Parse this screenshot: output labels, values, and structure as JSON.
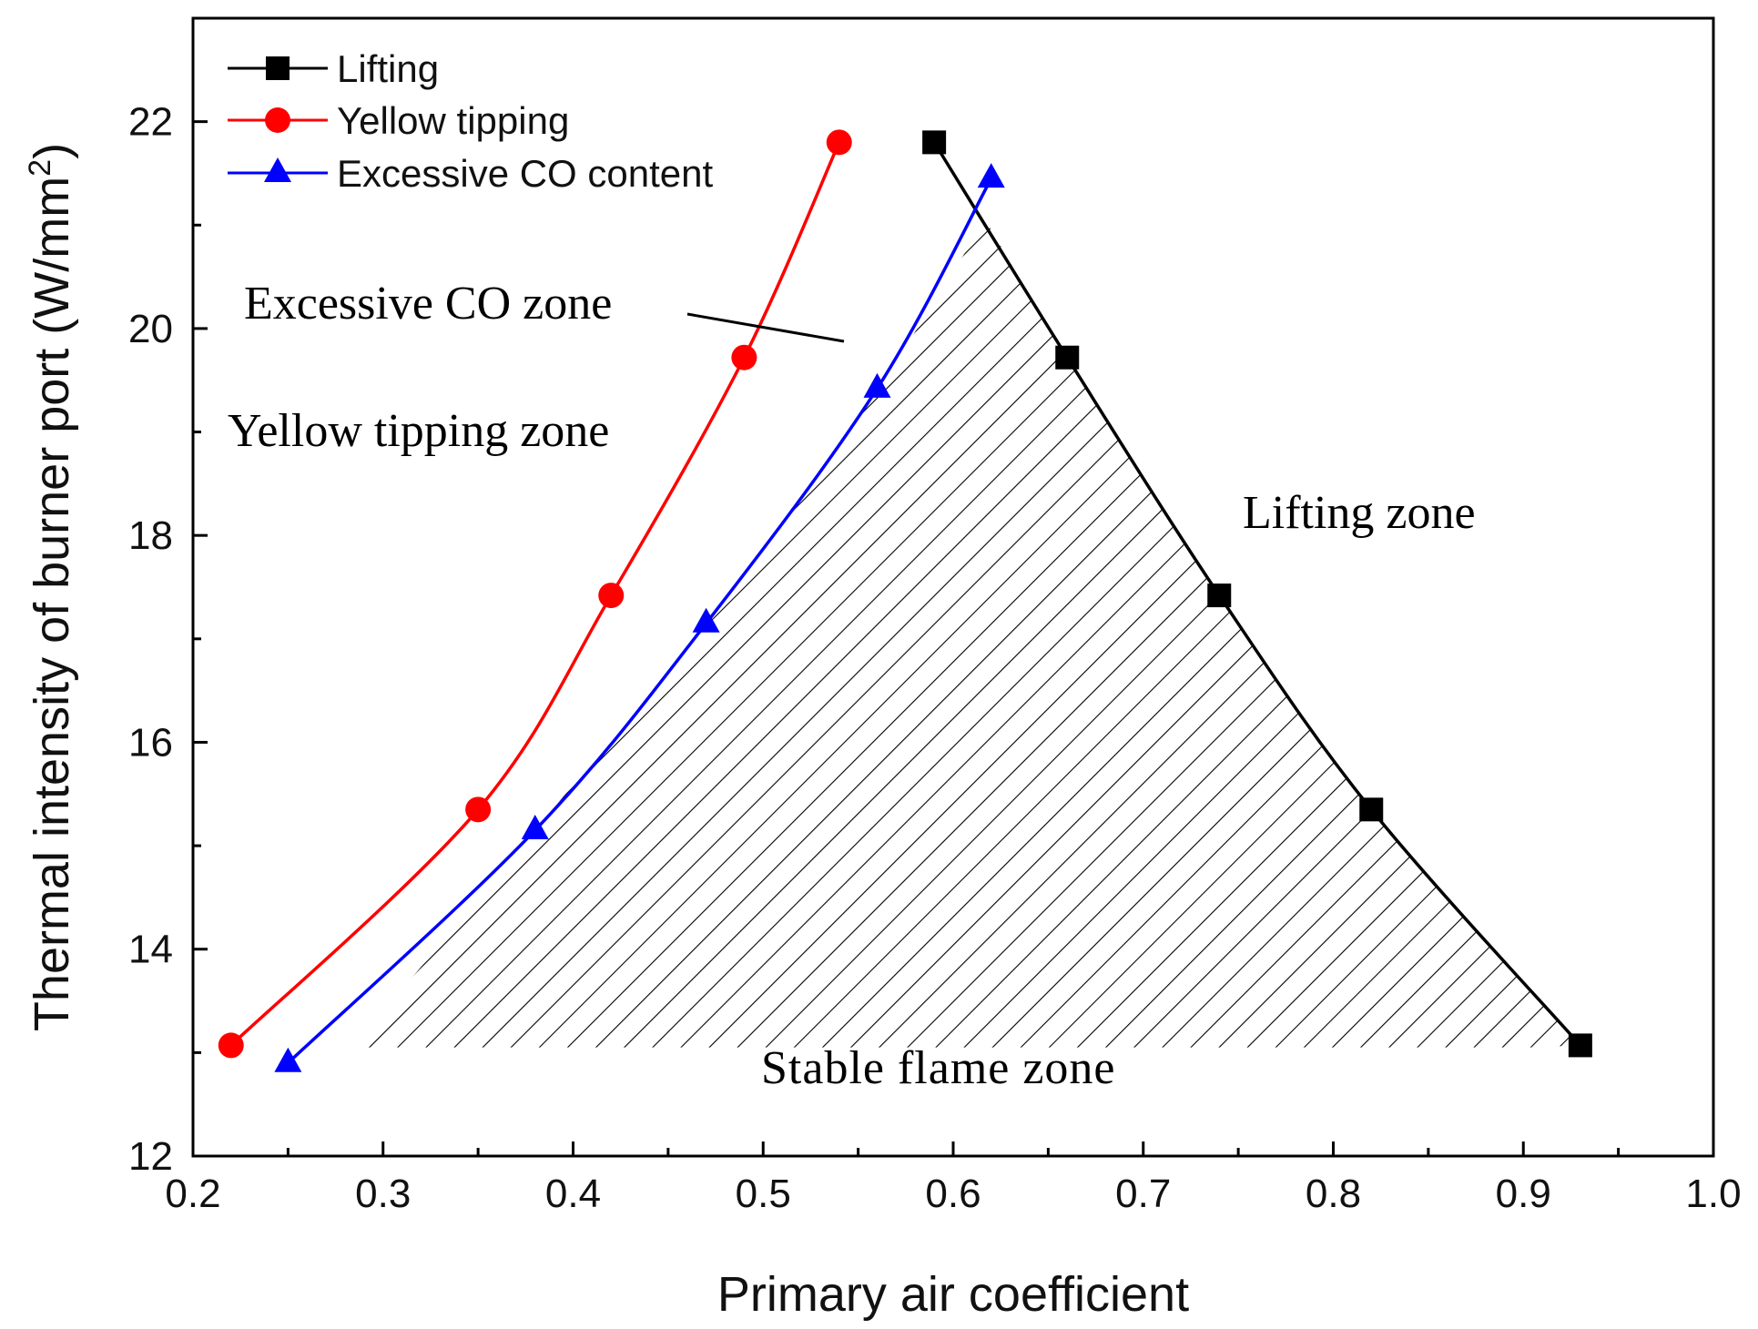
{
  "chart_data": {
    "type": "line",
    "title": "",
    "xlabel": "Primary air coefficient",
    "ylabel_main": "Thermal intensity of burner port (W/mm",
    "ylabel_sup": "2",
    "ylabel_close": ")",
    "xlim": [
      0.2,
      1.0
    ],
    "ylim": [
      12,
      23
    ],
    "x_ticks": [
      "0.2",
      "0.3",
      "0.4",
      "0.5",
      "0.6",
      "0.7",
      "0.8",
      "0.9",
      "1.0"
    ],
    "y_ticks": [
      "12",
      "14",
      "16",
      "18",
      "20",
      "22"
    ],
    "legend_position": "top-left",
    "grid": false,
    "series": [
      {
        "name": "Lifting",
        "color": "#000000",
        "marker": "square",
        "x": [
          0.59,
          0.66,
          0.74,
          0.82,
          0.93
        ],
        "y": [
          21.8,
          19.72,
          17.42,
          15.35,
          13.07
        ]
      },
      {
        "name": "Yellow tipping",
        "color": "#ff0000",
        "marker": "circle",
        "x": [
          0.22,
          0.35,
          0.42,
          0.49,
          0.54
        ],
        "y": [
          13.07,
          15.35,
          17.42,
          19.72,
          21.8
        ]
      },
      {
        "name": "Excessive CO content",
        "color": "#0000ff",
        "marker": "triangle",
        "x": [
          0.25,
          0.38,
          0.47,
          0.56,
          0.62
        ],
        "y": [
          12.9,
          15.15,
          17.15,
          19.42,
          21.45
        ]
      }
    ],
    "annotations": [
      {
        "id": "excessive-co-zone",
        "text": "Excessive CO zone"
      },
      {
        "id": "yellow-tipping-zone",
        "text": "Yellow tipping zone"
      },
      {
        "id": "lifting-zone",
        "text": "Lifting zone"
      },
      {
        "id": "stable-flame-zone",
        "text": "Stable flame zone"
      }
    ]
  }
}
